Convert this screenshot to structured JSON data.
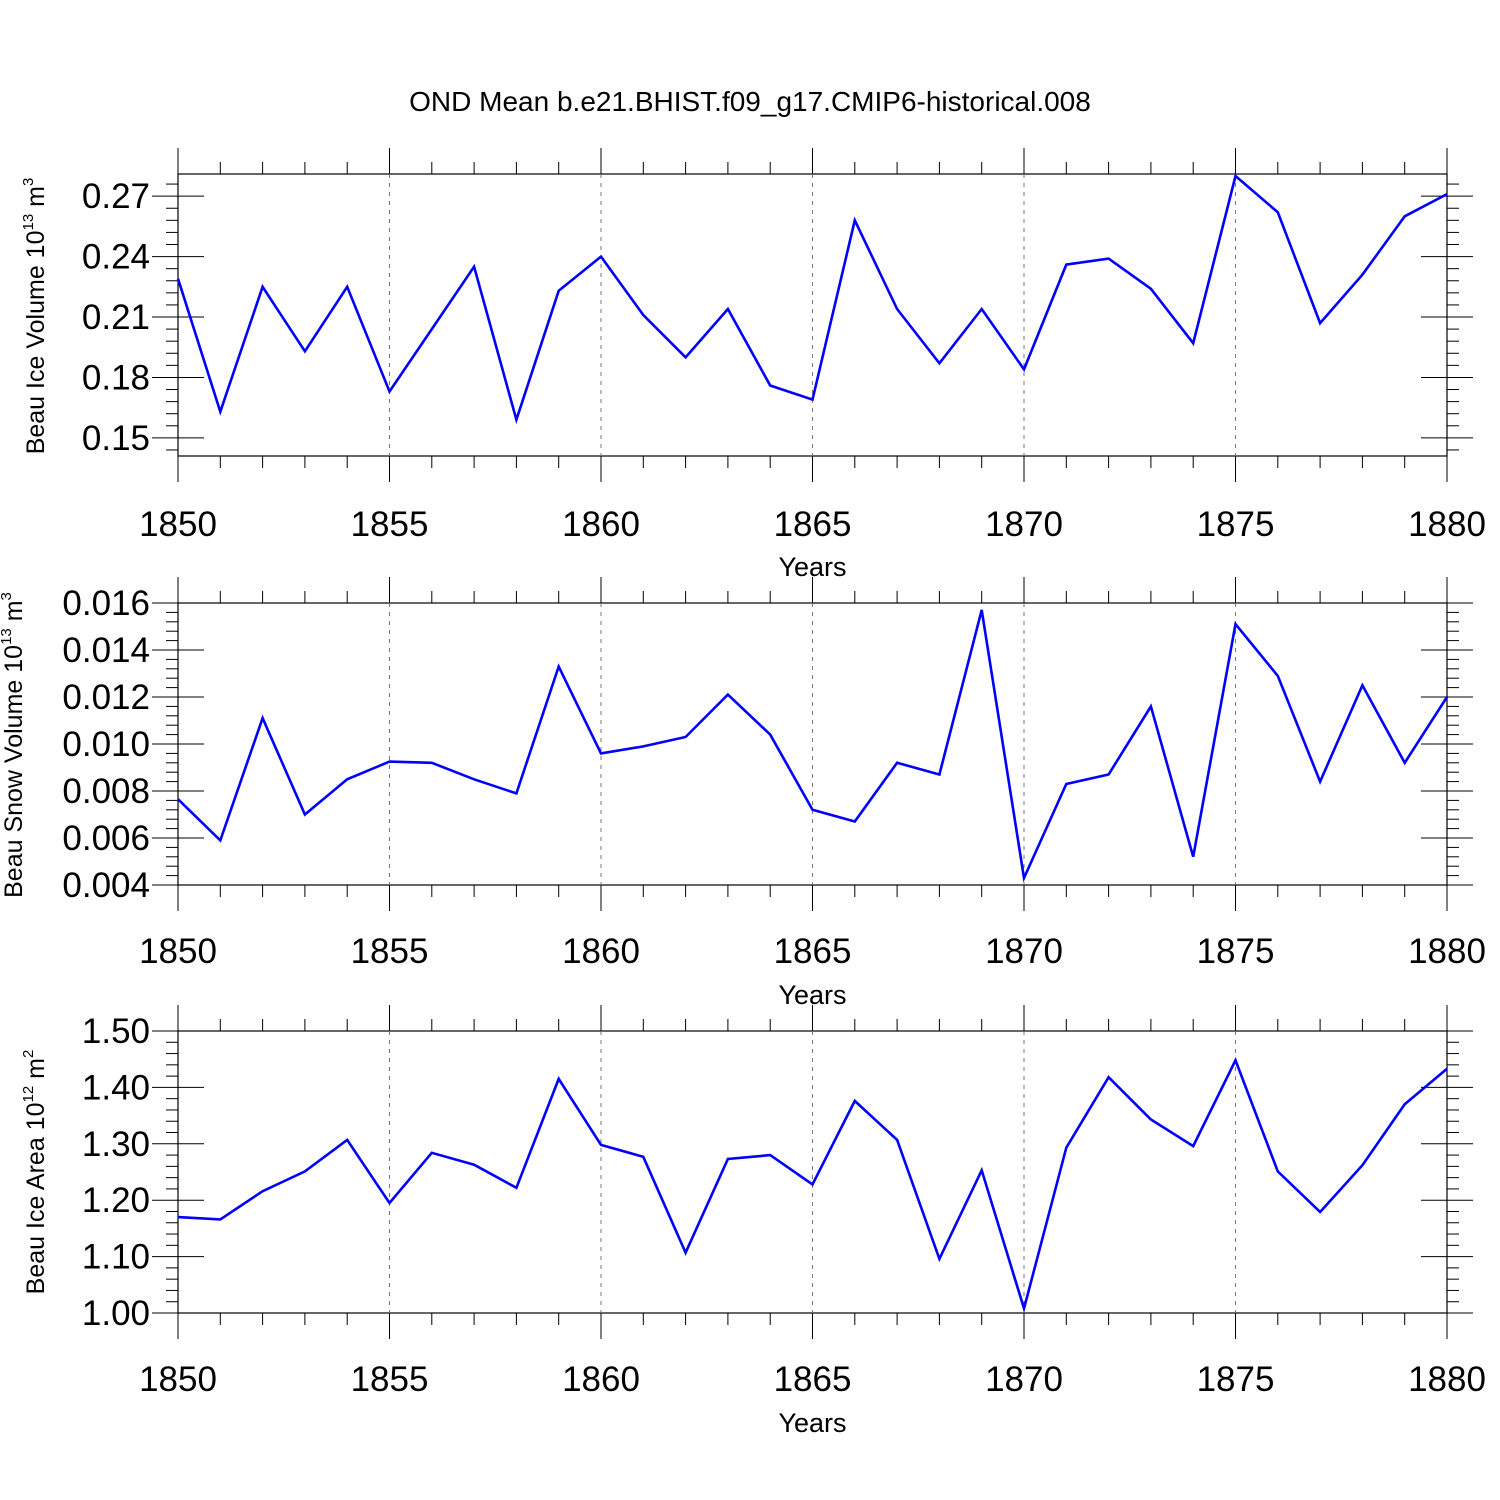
{
  "title": "OND Mean b.e21.BHIST.f09_g17.CMIP6-historical.008",
  "line_color": "#0000ff",
  "chart_data": [
    {
      "type": "line",
      "ylabel": {
        "text": "Beau Ice Volume 10",
        "exp": "13",
        "unit": " m",
        "unit_exp": "3"
      },
      "xlabel": "Years",
      "xlim": [
        1850,
        1880
      ],
      "ylim": [
        0.141,
        0.281
      ],
      "yticks": [
        0.15,
        0.18,
        0.21,
        0.24,
        0.27
      ],
      "ytick_labels": [
        "0.15",
        "0.18",
        "0.21",
        "0.24",
        "0.27"
      ],
      "xticks": [
        1850,
        1855,
        1860,
        1865,
        1870,
        1875,
        1880
      ],
      "xtick_labels": [
        "1850",
        "1855",
        "1860",
        "1865",
        "1870",
        "1875",
        "1880"
      ],
      "x": [
        1850,
        1851,
        1852,
        1853,
        1854,
        1855,
        1856,
        1857,
        1858,
        1859,
        1860,
        1861,
        1862,
        1863,
        1864,
        1865,
        1866,
        1867,
        1868,
        1869,
        1870,
        1871,
        1872,
        1873,
        1874,
        1875,
        1876,
        1877,
        1878,
        1879,
        1880
      ],
      "values": [
        0.229,
        0.163,
        0.225,
        0.193,
        0.225,
        0.173,
        0.204,
        0.235,
        0.159,
        0.223,
        0.24,
        0.211,
        0.19,
        0.214,
        0.176,
        0.169,
        0.258,
        0.214,
        0.187,
        0.214,
        0.184,
        0.236,
        0.239,
        0.224,
        0.197,
        0.28,
        0.262,
        0.207,
        0.231,
        0.26,
        0.271
      ]
    },
    {
      "type": "line",
      "ylabel": {
        "text": "Beau Snow Volume 10",
        "exp": "13",
        "unit": " m",
        "unit_exp": "3"
      },
      "xlabel": "Years",
      "xlim": [
        1850,
        1880
      ],
      "ylim": [
        0.004,
        0.016
      ],
      "yticks": [
        0.004,
        0.006,
        0.008,
        0.01,
        0.012,
        0.014,
        0.016
      ],
      "ytick_labels": [
        "0.004",
        "0.006",
        "0.008",
        "0.010",
        "0.012",
        "0.014",
        "0.016"
      ],
      "xticks": [
        1850,
        1855,
        1860,
        1865,
        1870,
        1875,
        1880
      ],
      "xtick_labels": [
        "1850",
        "1855",
        "1860",
        "1865",
        "1870",
        "1875",
        "1880"
      ],
      "x": [
        1850,
        1851,
        1852,
        1853,
        1854,
        1855,
        1856,
        1857,
        1858,
        1859,
        1860,
        1861,
        1862,
        1863,
        1864,
        1865,
        1866,
        1867,
        1868,
        1869,
        1870,
        1871,
        1872,
        1873,
        1874,
        1875,
        1876,
        1877,
        1878,
        1879,
        1880
      ],
      "values": [
        0.00765,
        0.0059,
        0.0111,
        0.007,
        0.0085,
        0.00925,
        0.0092,
        0.0085,
        0.0079,
        0.0133,
        0.0096,
        0.0099,
        0.0103,
        0.0121,
        0.0104,
        0.0072,
        0.0067,
        0.0092,
        0.0087,
        0.0157,
        0.0043,
        0.0083,
        0.0087,
        0.0116,
        0.0052,
        0.0151,
        0.0129,
        0.0084,
        0.0125,
        0.0092,
        0.012
      ]
    },
    {
      "type": "line",
      "ylabel": {
        "text": "Beau Ice Area 10",
        "exp": "12",
        "unit": " m",
        "unit_exp": "2"
      },
      "xlabel": "Years",
      "xlim": [
        1850,
        1880
      ],
      "ylim": [
        1.0,
        1.5
      ],
      "yticks": [
        1.0,
        1.1,
        1.2,
        1.3,
        1.4,
        1.5
      ],
      "ytick_labels": [
        "1.00",
        "1.10",
        "1.20",
        "1.30",
        "1.40",
        "1.50"
      ],
      "xticks": [
        1850,
        1855,
        1860,
        1865,
        1870,
        1875,
        1880
      ],
      "xtick_labels": [
        "1850",
        "1855",
        "1860",
        "1865",
        "1870",
        "1875",
        "1880"
      ],
      "x": [
        1850,
        1851,
        1852,
        1853,
        1854,
        1855,
        1856,
        1857,
        1858,
        1859,
        1860,
        1861,
        1862,
        1863,
        1864,
        1865,
        1866,
        1867,
        1868,
        1869,
        1870,
        1871,
        1872,
        1873,
        1874,
        1875,
        1876,
        1877,
        1878,
        1879,
        1880
      ],
      "values": [
        1.17,
        1.166,
        1.216,
        1.251,
        1.307,
        1.195,
        1.284,
        1.263,
        1.222,
        1.415,
        1.298,
        1.277,
        1.107,
        1.273,
        1.28,
        1.228,
        1.376,
        1.307,
        1.096,
        1.253,
        1.008,
        1.293,
        1.418,
        1.343,
        1.296,
        1.448,
        1.251,
        1.179,
        1.262,
        1.37,
        1.433
      ]
    }
  ]
}
